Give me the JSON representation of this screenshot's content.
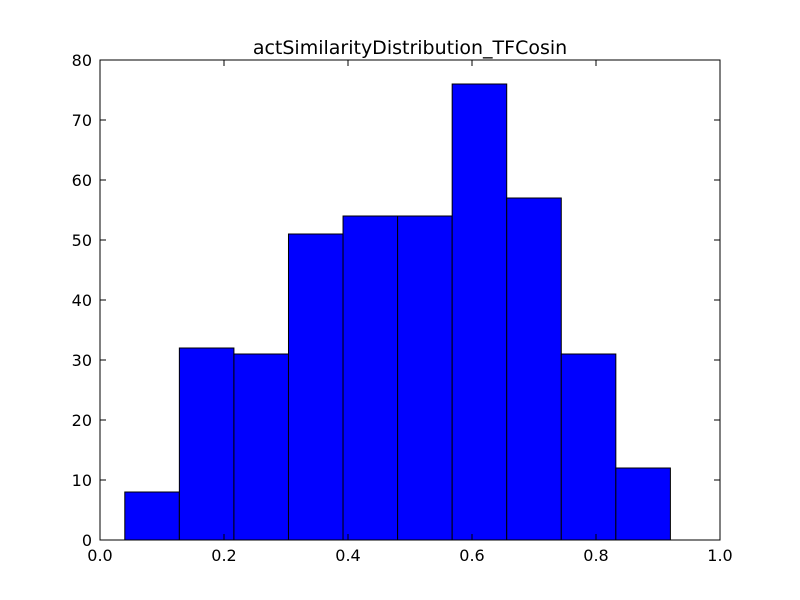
{
  "chart_data": {
    "type": "bar",
    "title": "actSimilarityDistribution_TFCosin",
    "xlabel": "",
    "ylabel": "",
    "xlim": [
      0.0,
      1.0
    ],
    "ylim": [
      0,
      80
    ],
    "grid": false,
    "bin_edges": [
      0.04,
      0.128,
      0.216,
      0.304,
      0.392,
      0.48,
      0.568,
      0.656,
      0.744,
      0.832,
      0.92
    ],
    "values": [
      8,
      32,
      31,
      51,
      54,
      54,
      76,
      57,
      31,
      12
    ],
    "bar_color": "#0000ff",
    "edge_color": "#000000",
    "x_ticks": [
      0.0,
      0.2,
      0.4,
      0.6,
      0.8,
      1.0
    ],
    "x_tick_labels": [
      "0.0",
      "0.2",
      "0.4",
      "0.6",
      "0.8",
      "1.0"
    ],
    "y_ticks": [
      0,
      10,
      20,
      30,
      40,
      50,
      60,
      70,
      80
    ],
    "y_tick_labels": [
      "0",
      "10",
      "20",
      "30",
      "40",
      "50",
      "60",
      "70",
      "80"
    ]
  }
}
